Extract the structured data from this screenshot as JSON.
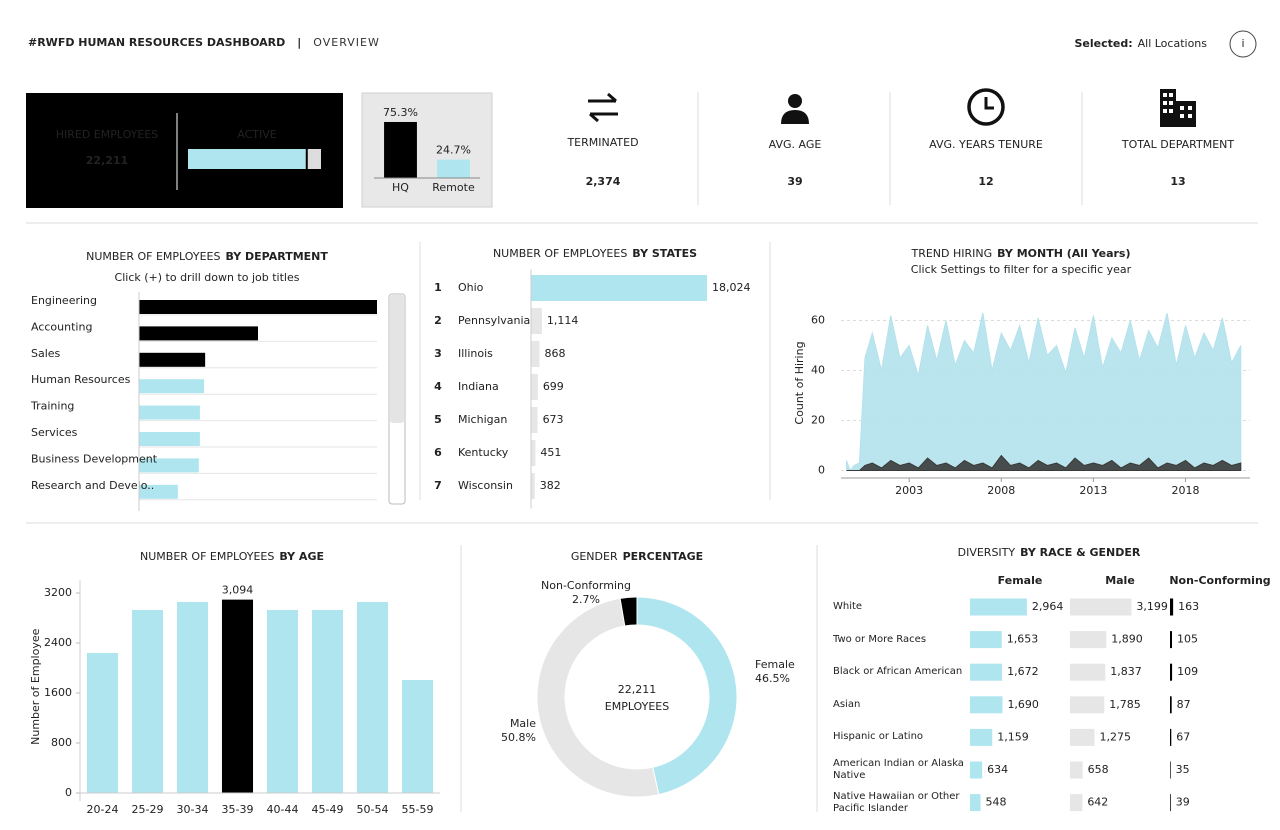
{
  "header": {
    "title": "#RWFD HUMAN RESOURCES DASHBOARD",
    "separator": "|",
    "subtitle": "OVERVIEW",
    "selected_label": "Selected:",
    "selected_value": "All Locations",
    "info": "i"
  },
  "kpis": {
    "hired": {
      "label": "HIRED EMPLOYEES",
      "value": "22,211"
    },
    "active": {
      "label": "ACTIVE",
      "share": 89.3
    },
    "terminated": {
      "label": "TERMINATED",
      "value": "2,374"
    },
    "avg_age": {
      "label": "AVG. AGE",
      "value": "39"
    },
    "avg_tenure": {
      "label": "AVG. YEARS TENURE",
      "value": "12"
    },
    "total_department": {
      "label": "TOTAL DEPARTMENT",
      "value": "13"
    }
  },
  "chart_data": [
    {
      "type": "bar",
      "categories": [
        "HQ",
        "Remote"
      ],
      "values": [
        75.3,
        24.7
      ],
      "value_labels": [
        "75.3%",
        "24.7%"
      ],
      "colors": [
        "#000000",
        "#aee5ef"
      ]
    },
    {
      "type": "hbar",
      "title": "NUMBER OF EMPLOYEES",
      "title_emphasis": "BY DEPARTMENT",
      "subtitle": "Click (+) to drill down to job titles",
      "categories": [
        "Engineering",
        "Accounting",
        "Sales",
        "Human Resources",
        "Training",
        "Services",
        "Business Development",
        "Research and Develo.."
      ],
      "values": [
        6800,
        3400,
        1890,
        1860,
        1740,
        1740,
        1710,
        1110
      ],
      "colors": [
        "#000000",
        "#000000",
        "#000000",
        "#aee5ef",
        "#aee5ef",
        "#aee5ef",
        "#aee5ef",
        "#aee5ef"
      ]
    },
    {
      "type": "hbar",
      "title": "NUMBER OF EMPLOYEES",
      "title_emphasis": "BY STATES",
      "ranks": [
        1,
        2,
        3,
        4,
        5,
        6,
        7
      ],
      "categories": [
        "Ohio",
        "Pennsylvania",
        "Illinois",
        "Indiana",
        "Michigan",
        "Kentucky",
        "Wisconsin"
      ],
      "values": [
        18024,
        1114,
        868,
        699,
        673,
        451,
        382
      ],
      "value_labels": [
        "18,024",
        "1,114",
        "868",
        "699",
        "673",
        "451",
        "382"
      ],
      "colors": [
        "#aee5ef",
        "#e6e6e6",
        "#e6e6e6",
        "#e6e6e6",
        "#e6e6e6",
        "#e6e6e6",
        "#e6e6e6"
      ]
    },
    {
      "type": "area",
      "title": "TREND HIRING",
      "title_emphasis": "BY MONTH (All Years)",
      "subtitle": "Click Settings to filter for a specific year",
      "y_label": "Count of Hiring",
      "xlim": [
        1999.3,
        2021.5
      ],
      "xticks": [
        2003,
        2008,
        2013,
        2018
      ],
      "ylim": [
        -3,
        73
      ],
      "yticks": [
        0,
        20,
        40,
        60
      ],
      "grid": true,
      "x": [
        1999.6,
        1999.8,
        2000.0,
        2000.3,
        2000.6,
        2001,
        2001.5,
        2002,
        2002.5,
        2003,
        2003.5,
        2004,
        2004.5,
        2005,
        2005.5,
        2006,
        2006.5,
        2007,
        2007.5,
        2008,
        2008.5,
        2009,
        2009.5,
        2010,
        2010.5,
        2011,
        2011.5,
        2012,
        2012.5,
        2013,
        2013.5,
        2014,
        2014.5,
        2015,
        2015.5,
        2016,
        2016.5,
        2017,
        2017.5,
        2018,
        2018.5,
        2019,
        2019.5,
        2020,
        2020.5,
        2021
      ],
      "series": [
        {
          "color": "#b4e2ec",
          "values": [
            4,
            0,
            2,
            3,
            45,
            55,
            40,
            62,
            45,
            50,
            38,
            58,
            44,
            60,
            42,
            52,
            47,
            63,
            40,
            55,
            48,
            58,
            43,
            61,
            46,
            50,
            39,
            57,
            45,
            62,
            41,
            53,
            47,
            60,
            44,
            56,
            49,
            63,
            42,
            58,
            45,
            55,
            48,
            61,
            43,
            50
          ]
        },
        {
          "color": "#3a3a3a",
          "values": [
            0,
            0,
            0,
            0,
            2,
            3,
            1,
            4,
            2,
            3,
            1,
            5,
            2,
            3,
            1,
            4,
            2,
            3,
            1,
            6,
            2,
            3,
            1,
            4,
            2,
            3,
            1,
            5,
            2,
            3,
            2,
            4,
            1,
            3,
            2,
            5,
            1,
            3,
            2,
            4,
            1,
            3,
            2,
            4,
            2,
            3
          ]
        }
      ]
    },
    {
      "type": "bar",
      "title": "NUMBER OF EMPLOYEES",
      "title_emphasis": "BY AGE",
      "y_label": "Number of Employee",
      "categories": [
        "20-24",
        "25-29",
        "30-34",
        "35-39",
        "40-44",
        "45-49",
        "50-54",
        "55-59"
      ],
      "values": [
        2240,
        2928,
        3056,
        3094,
        2928,
        2928,
        3056,
        1808
      ],
      "value_labels": [
        null,
        null,
        null,
        "3,094",
        null,
        null,
        null,
        null
      ],
      "colors": [
        "#aee5ef",
        "#aee5ef",
        "#aee5ef",
        "#000000",
        "#aee5ef",
        "#aee5ef",
        "#aee5ef",
        "#aee5ef"
      ],
      "ylim": [
        0,
        3400
      ],
      "yticks": [
        0,
        800,
        1600,
        2400,
        3200
      ]
    },
    {
      "type": "donut",
      "title": "GENDER",
      "title_emphasis": "PERCENTAGE",
      "center_value": "22,211",
      "center_label": "EMPLOYEES",
      "categories": [
        "Female",
        "Male",
        "Non-Conforming"
      ],
      "values": [
        46.5,
        50.8,
        2.7
      ],
      "value_labels": [
        "46.5%",
        "50.8%",
        "2.7%"
      ],
      "colors": [
        "#aee5ef",
        "#e6e6e6",
        "#000000"
      ]
    },
    {
      "type": "multi_hbar",
      "title": "DIVERSITY",
      "title_emphasis": "BY RACE & GENDER",
      "categories": [
        "White",
        "Two or More Races",
        "Black or African American",
        "Asian",
        "Hispanic or Latino",
        "American Indian or Alaska Native",
        "Native Hawaiian or Other Pacific Islander"
      ],
      "series": [
        {
          "name": "Female",
          "color": "#aee5ef",
          "values": [
            2964,
            1653,
            1672,
            1690,
            1159,
            634,
            548
          ],
          "value_labels": [
            "2,964",
            "1,653",
            "1,672",
            "1,690",
            "1,159",
            "634",
            "548"
          ]
        },
        {
          "name": "Male",
          "color": "#e6e6e6",
          "values": [
            3199,
            1890,
            1837,
            1785,
            1275,
            658,
            642
          ],
          "value_labels": [
            "3,199",
            "1,890",
            "1,837",
            "1,785",
            "1,275",
            "658",
            "642"
          ]
        },
        {
          "name": "Non-Conforming",
          "color": "#000000",
          "values": [
            163,
            105,
            109,
            87,
            67,
            35,
            39
          ]
        }
      ]
    }
  ]
}
